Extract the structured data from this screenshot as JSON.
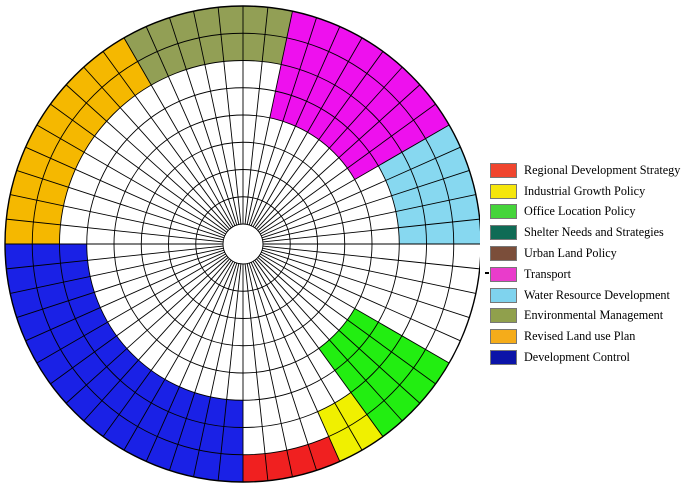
{
  "diagram": {
    "type": "radial-sector-wheel",
    "rings": 8,
    "spokes": 60,
    "legend_placement": "right",
    "legend": [
      {
        "key": "regional",
        "label": "Regional Development Strategy",
        "color": "#f0452e"
      },
      {
        "key": "industrial",
        "label": "Industrial Growth Policy",
        "color": "#f5e60c"
      },
      {
        "key": "office",
        "label": "Office Location Policy",
        "color": "#45d43a"
      },
      {
        "key": "shelter",
        "label": "Shelter Needs and Strategies",
        "color": "#0f6b55"
      },
      {
        "key": "urban",
        "label": "Urban Land Policy",
        "color": "#7b4e3a"
      },
      {
        "key": "transport",
        "label": "Transport",
        "color": "#e93ccb"
      },
      {
        "key": "water",
        "label": "Water Resource Development",
        "color": "#7fd3ee"
      },
      {
        "key": "environment",
        "label": "Environmental Management",
        "color": "#90a04c"
      },
      {
        "key": "landuse",
        "label": "Revised Land use Plan",
        "color": "#f5ac1a"
      },
      {
        "key": "control",
        "label": "Development Control",
        "color": "#0b14a8"
      }
    ],
    "sectors": [
      {
        "key": "control",
        "spoke_start": 30,
        "spoke_end": 45,
        "ring_start": 5,
        "ring_end": 8,
        "color": "#1a21e6"
      },
      {
        "key": "landuse",
        "spoke_start": 45,
        "spoke_end": 55,
        "ring_start": 6,
        "ring_end": 8,
        "color": "#f5b800"
      },
      {
        "key": "environment",
        "spoke_start": 55,
        "spoke_end": 7,
        "ring_start": 6,
        "ring_end": 8,
        "color": "#929f55"
      },
      {
        "key": "transport",
        "spoke_start": 2,
        "spoke_end": 10,
        "ring_start": 4,
        "ring_end": 8,
        "color": "#ee10ee"
      },
      {
        "key": "water",
        "spoke_start": 10,
        "spoke_end": 15,
        "ring_start": 5,
        "ring_end": 8,
        "color": "#87d8f0"
      },
      {
        "key": "office",
        "spoke_start": 20,
        "spoke_end": 24,
        "ring_start": 4,
        "ring_end": 8,
        "color": "#22ee11"
      },
      {
        "key": "industrial",
        "spoke_start": 24,
        "spoke_end": 26,
        "ring_start": 6,
        "ring_end": 8,
        "color": "#f0f000"
      },
      {
        "key": "regional",
        "spoke_start": 26,
        "spoke_end": 30,
        "ring_start": 7,
        "ring_end": 8,
        "color": "#f02020"
      }
    ]
  }
}
